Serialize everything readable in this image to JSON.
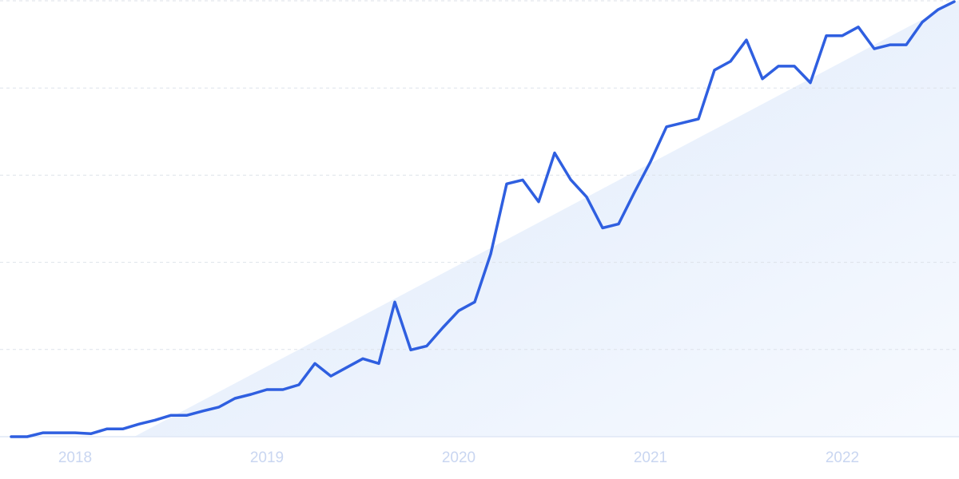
{
  "chart_data": {
    "type": "line",
    "categories": [
      null,
      null,
      null,
      null,
      "2018",
      null,
      null,
      null,
      null,
      null,
      null,
      null,
      null,
      null,
      null,
      null,
      "2019",
      null,
      null,
      null,
      null,
      null,
      null,
      null,
      null,
      null,
      null,
      null,
      "2020",
      null,
      null,
      null,
      null,
      null,
      null,
      null,
      null,
      null,
      null,
      null,
      "2021",
      null,
      null,
      null,
      null,
      null,
      null,
      null,
      null,
      null,
      null,
      null,
      "2022",
      null,
      null,
      null,
      null,
      null,
      null,
      null
    ],
    "values": [
      0,
      0,
      0.9,
      0.9,
      0.9,
      0.7,
      1.8,
      1.8,
      2.9,
      3.8,
      4.9,
      4.9,
      5.9,
      6.8,
      8.8,
      9.7,
      10.8,
      10.8,
      11.9,
      16.8,
      13.9,
      15.9,
      17.9,
      16.8,
      30.9,
      19.9,
      20.8,
      25.0,
      28.9,
      30.9,
      41.9,
      58.0,
      58.9,
      53.9,
      65.1,
      59.0,
      55.0,
      47.9,
      48.8,
      56.1,
      63.1,
      71.1,
      72.0,
      72.9,
      84.1,
      86.1,
      91.0,
      82.1,
      85.0,
      85.0,
      81.2,
      92.0,
      92.0,
      94.0,
      89.0,
      89.9,
      89.9,
      95.1,
      98.0,
      99.8
    ],
    "color": "#2f5fe0",
    "ylim": [
      0,
      100
    ],
    "yticks": [
      0,
      20,
      40,
      60,
      80,
      100
    ],
    "grid": true
  }
}
